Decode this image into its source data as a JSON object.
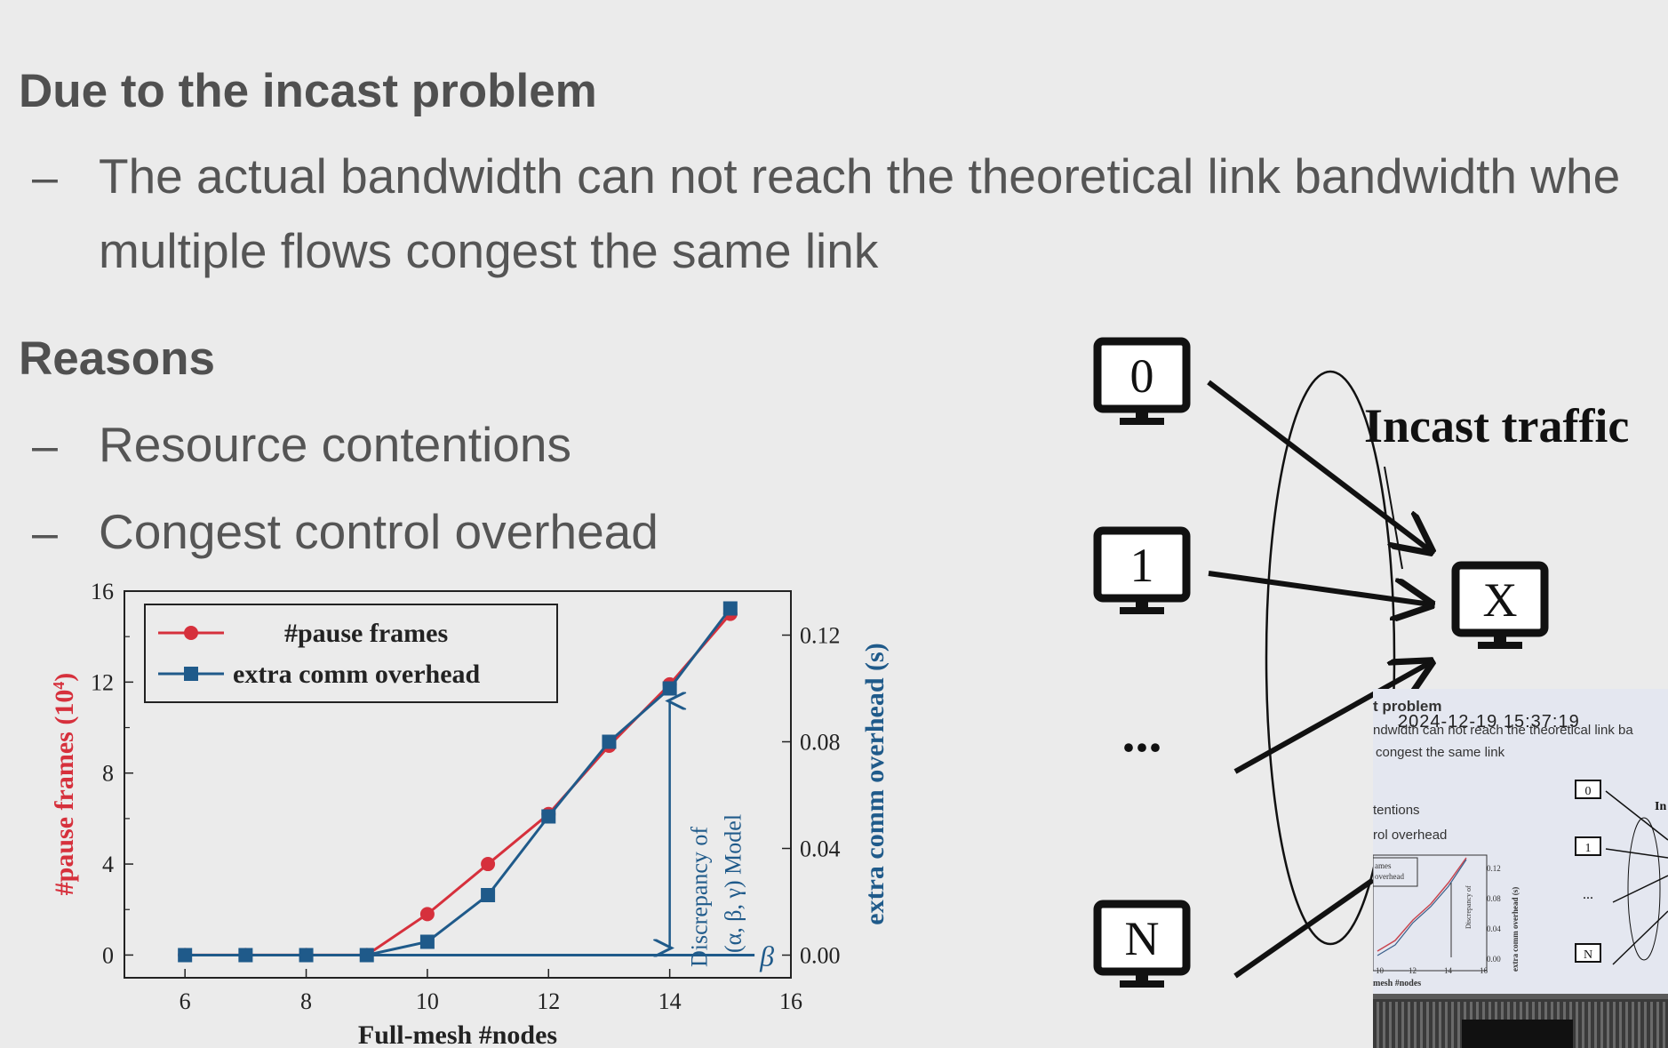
{
  "slide": {
    "heading1": "Due to the incast problem",
    "bullet1_dash": "–",
    "bullet1_line1": "The actual bandwidth can not reach the theoretical link bandwidth whe",
    "bullet1_line2": "multiple flows congest the same link",
    "heading2": "Reasons",
    "bullet2_dash": "–",
    "bullet2": "Resource contentions",
    "bullet3_dash": "–",
    "bullet3": "Congest control overhead"
  },
  "chart_data": {
    "type": "line",
    "xlabel": "Full-mesh #nodes",
    "ylabel_left": "#pause frames (10",
    "ylabel_left_sup": "4",
    "ylabel_left_close": ")",
    "ylabel_right": "extra comm overhead (s)",
    "x_ticks": [
      "6",
      "8",
      "10",
      "12",
      "14",
      "16"
    ],
    "y_left_ticks": [
      "0",
      "4",
      "8",
      "12",
      "16"
    ],
    "y_right_ticks": [
      "0.00",
      "0.04",
      "0.08",
      "0.12"
    ],
    "xlim": [
      5,
      16
    ],
    "ylim_left": [
      -1,
      16
    ],
    "ylim_right": [
      -0.0085,
      0.1365
    ],
    "legend_position": "top-left",
    "series": [
      {
        "name": "#pause frames",
        "axis": "left",
        "color": "#d6303c",
        "marker": "circle",
        "x": [
          6,
          7,
          8,
          9,
          10,
          11,
          12,
          13,
          14,
          15
        ],
        "values": [
          0,
          0,
          0,
          0,
          1.8,
          4.0,
          6.2,
          9.2,
          11.9,
          15.0
        ]
      },
      {
        "name": "extra comm overhead",
        "axis": "right",
        "color": "#1f5a8a",
        "marker": "square",
        "x": [
          6,
          7,
          8,
          9,
          10,
          11,
          12,
          13,
          14,
          15
        ],
        "values": [
          0,
          0,
          0,
          0,
          0.005,
          0.0225,
          0.052,
          0.08,
          0.1,
          0.13
        ]
      }
    ],
    "annotation": {
      "line1": "Discrepancy of",
      "line2": "(α, β, γ) Model",
      "beta_label": "β",
      "x": 14
    }
  },
  "diagram": {
    "nodes": [
      "0",
      "1",
      "N"
    ],
    "ellipsis": "...",
    "target": "X",
    "label": "Incast traffic"
  },
  "thumbnail": {
    "timestamp": "2024-12-19 15:37:19",
    "title": "t problem",
    "line1": "ndwidth can not reach the theoretical link ba",
    "line2": "congest the same link",
    "line3": "tentions",
    "line4": "rol overhead",
    "legend1": "ames",
    "legend2": "overhead",
    "xlabel": "mesh #nodes",
    "ticks_x": [
      "10",
      "12",
      "14",
      "16"
    ],
    "ticks_y": [
      "0.12",
      "0.08",
      "0.04",
      "0.00"
    ],
    "ylabel": "extra comm overhead (s)",
    "nodes": [
      "0",
      "1",
      "N"
    ],
    "ellipsis": "...",
    "label": "In"
  },
  "colors": {
    "background": "#ebebeb",
    "text": "#555555",
    "red": "#d6303c",
    "blue": "#1f5a8a"
  }
}
